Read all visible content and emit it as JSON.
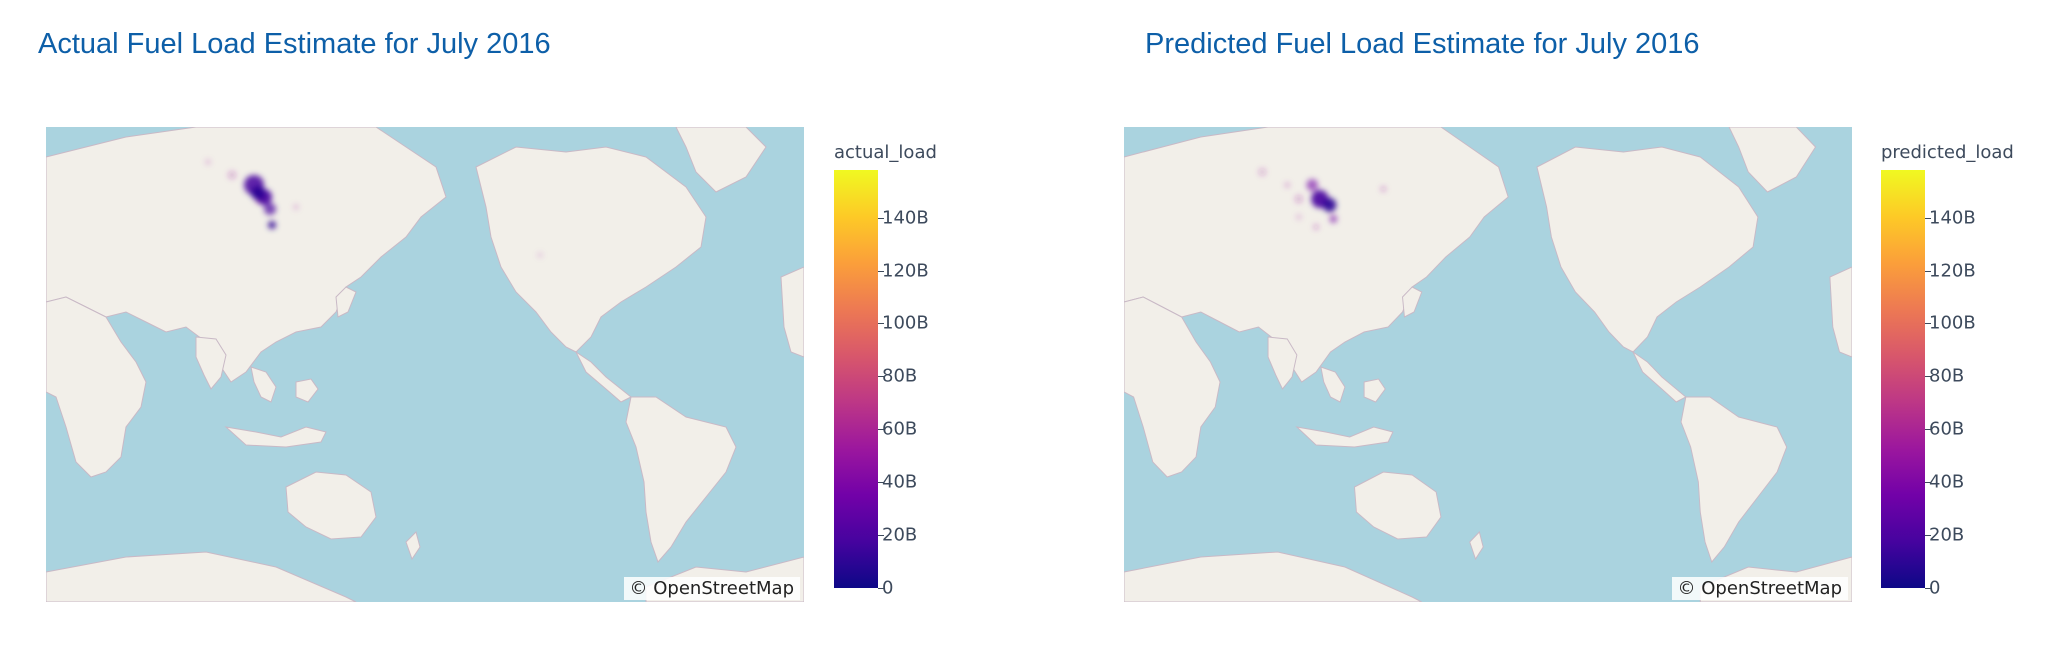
{
  "panels": [
    {
      "title": "Actual Fuel Load Estimate for July 2016",
      "colorbar": {
        "title": "actual_load",
        "ticks": [
          "0",
          "20B",
          "40B",
          "60B",
          "80B",
          "100B",
          "120B",
          "140B"
        ],
        "max_value": 158
      },
      "attribution": "© OpenStreetMap"
    },
    {
      "title": "Predicted Fuel Load Estimate for July 2016",
      "colorbar": {
        "title": "predicted_load",
        "ticks": [
          "0",
          "20B",
          "40B",
          "60B",
          "80B",
          "100B",
          "120B",
          "140B"
        ],
        "max_value": 158
      },
      "attribution": "© OpenStreetMap"
    }
  ],
  "colors": {
    "title": "#0d5fa8",
    "ocean": "#aad3df",
    "land": "#f2efe9",
    "border": "#c9b9c6",
    "colorscale": [
      "#0d0887",
      "#46039f",
      "#7201a8",
      "#9c179e",
      "#bd3786",
      "#d8576b",
      "#ed7953",
      "#fb9f3a",
      "#fdca26",
      "#f0f921"
    ]
  }
}
